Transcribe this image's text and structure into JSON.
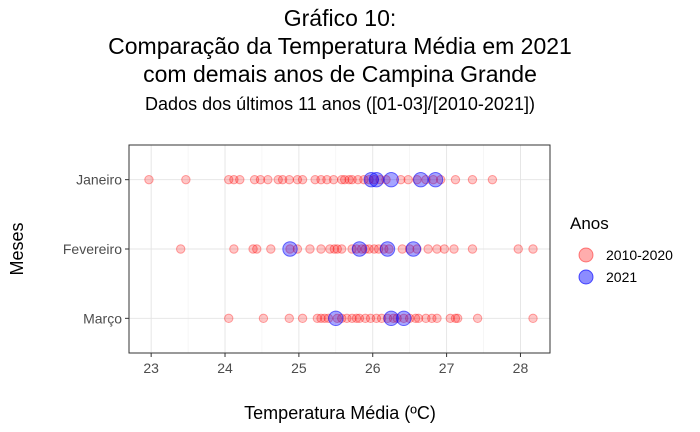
{
  "chart_data": {
    "type": "scatter",
    "title_lines": [
      "Gráfico 10:",
      "Comparação da Temperatura Média em 2021",
      "com demais anos de Campina Grande"
    ],
    "subtitle": "Dados dos últimos 11 anos ([01-03]/[2010-2021])",
    "xlabel": "Temperatura Média (ºC)",
    "ylabel": "Meses",
    "xlim": [
      22.7,
      28.4
    ],
    "x_ticks": [
      23,
      24,
      25,
      26,
      27,
      28
    ],
    "x_tick_labels": [
      "23",
      "24",
      "25",
      "26",
      "27",
      "28"
    ],
    "categories": [
      "Janeiro",
      "Fevereiro",
      "Março"
    ],
    "grid": true,
    "legend": {
      "title": "Anos",
      "position": "right",
      "entries": [
        {
          "label": "2010-2020",
          "color": "#ff0000"
        },
        {
          "label": "2021",
          "color": "#0000ff"
        }
      ]
    },
    "series": [
      {
        "name": "2010-2020",
        "color": "#ff0000",
        "points": {
          "Janeiro": [
            22.97,
            23.47,
            24.05,
            24.12,
            24.2,
            24.4,
            24.48,
            24.58,
            24.72,
            24.78,
            24.87,
            24.98,
            25.05,
            25.22,
            25.3,
            25.38,
            25.47,
            25.58,
            25.62,
            25.68,
            25.72,
            25.8,
            25.88,
            25.95,
            26.02,
            26.1,
            26.18,
            26.38,
            26.48,
            26.6,
            26.72,
            26.82,
            26.92,
            27.12,
            27.35,
            27.62
          ],
          "Fevereiro": [
            23.4,
            24.12,
            24.38,
            24.43,
            24.62,
            24.88,
            24.98,
            25.15,
            25.3,
            25.42,
            25.48,
            25.52,
            25.58,
            25.72,
            25.78,
            25.85,
            25.9,
            25.95,
            26.02,
            26.08,
            26.15,
            26.22,
            26.4,
            26.5,
            26.6,
            26.75,
            26.87,
            26.97,
            27.1,
            27.35,
            27.97,
            28.17
          ],
          "Março": [
            24.05,
            24.52,
            24.87,
            25.05,
            25.25,
            25.3,
            25.35,
            25.4,
            25.52,
            25.58,
            25.65,
            25.72,
            25.78,
            25.82,
            25.9,
            25.97,
            26.05,
            26.12,
            26.2,
            26.28,
            26.33,
            26.42,
            26.5,
            26.58,
            26.62,
            26.72,
            26.8,
            26.87,
            27.05,
            27.12,
            27.15,
            27.42,
            28.17
          ]
        }
      },
      {
        "name": "2021",
        "color": "#0000ff",
        "points": {
          "Janeiro": [
            25.98,
            26.05,
            26.25,
            26.65,
            26.85
          ],
          "Fevereiro": [
            24.88,
            25.82,
            26.2,
            26.55
          ],
          "Março": [
            25.5,
            26.25,
            26.42
          ]
        }
      }
    ]
  }
}
